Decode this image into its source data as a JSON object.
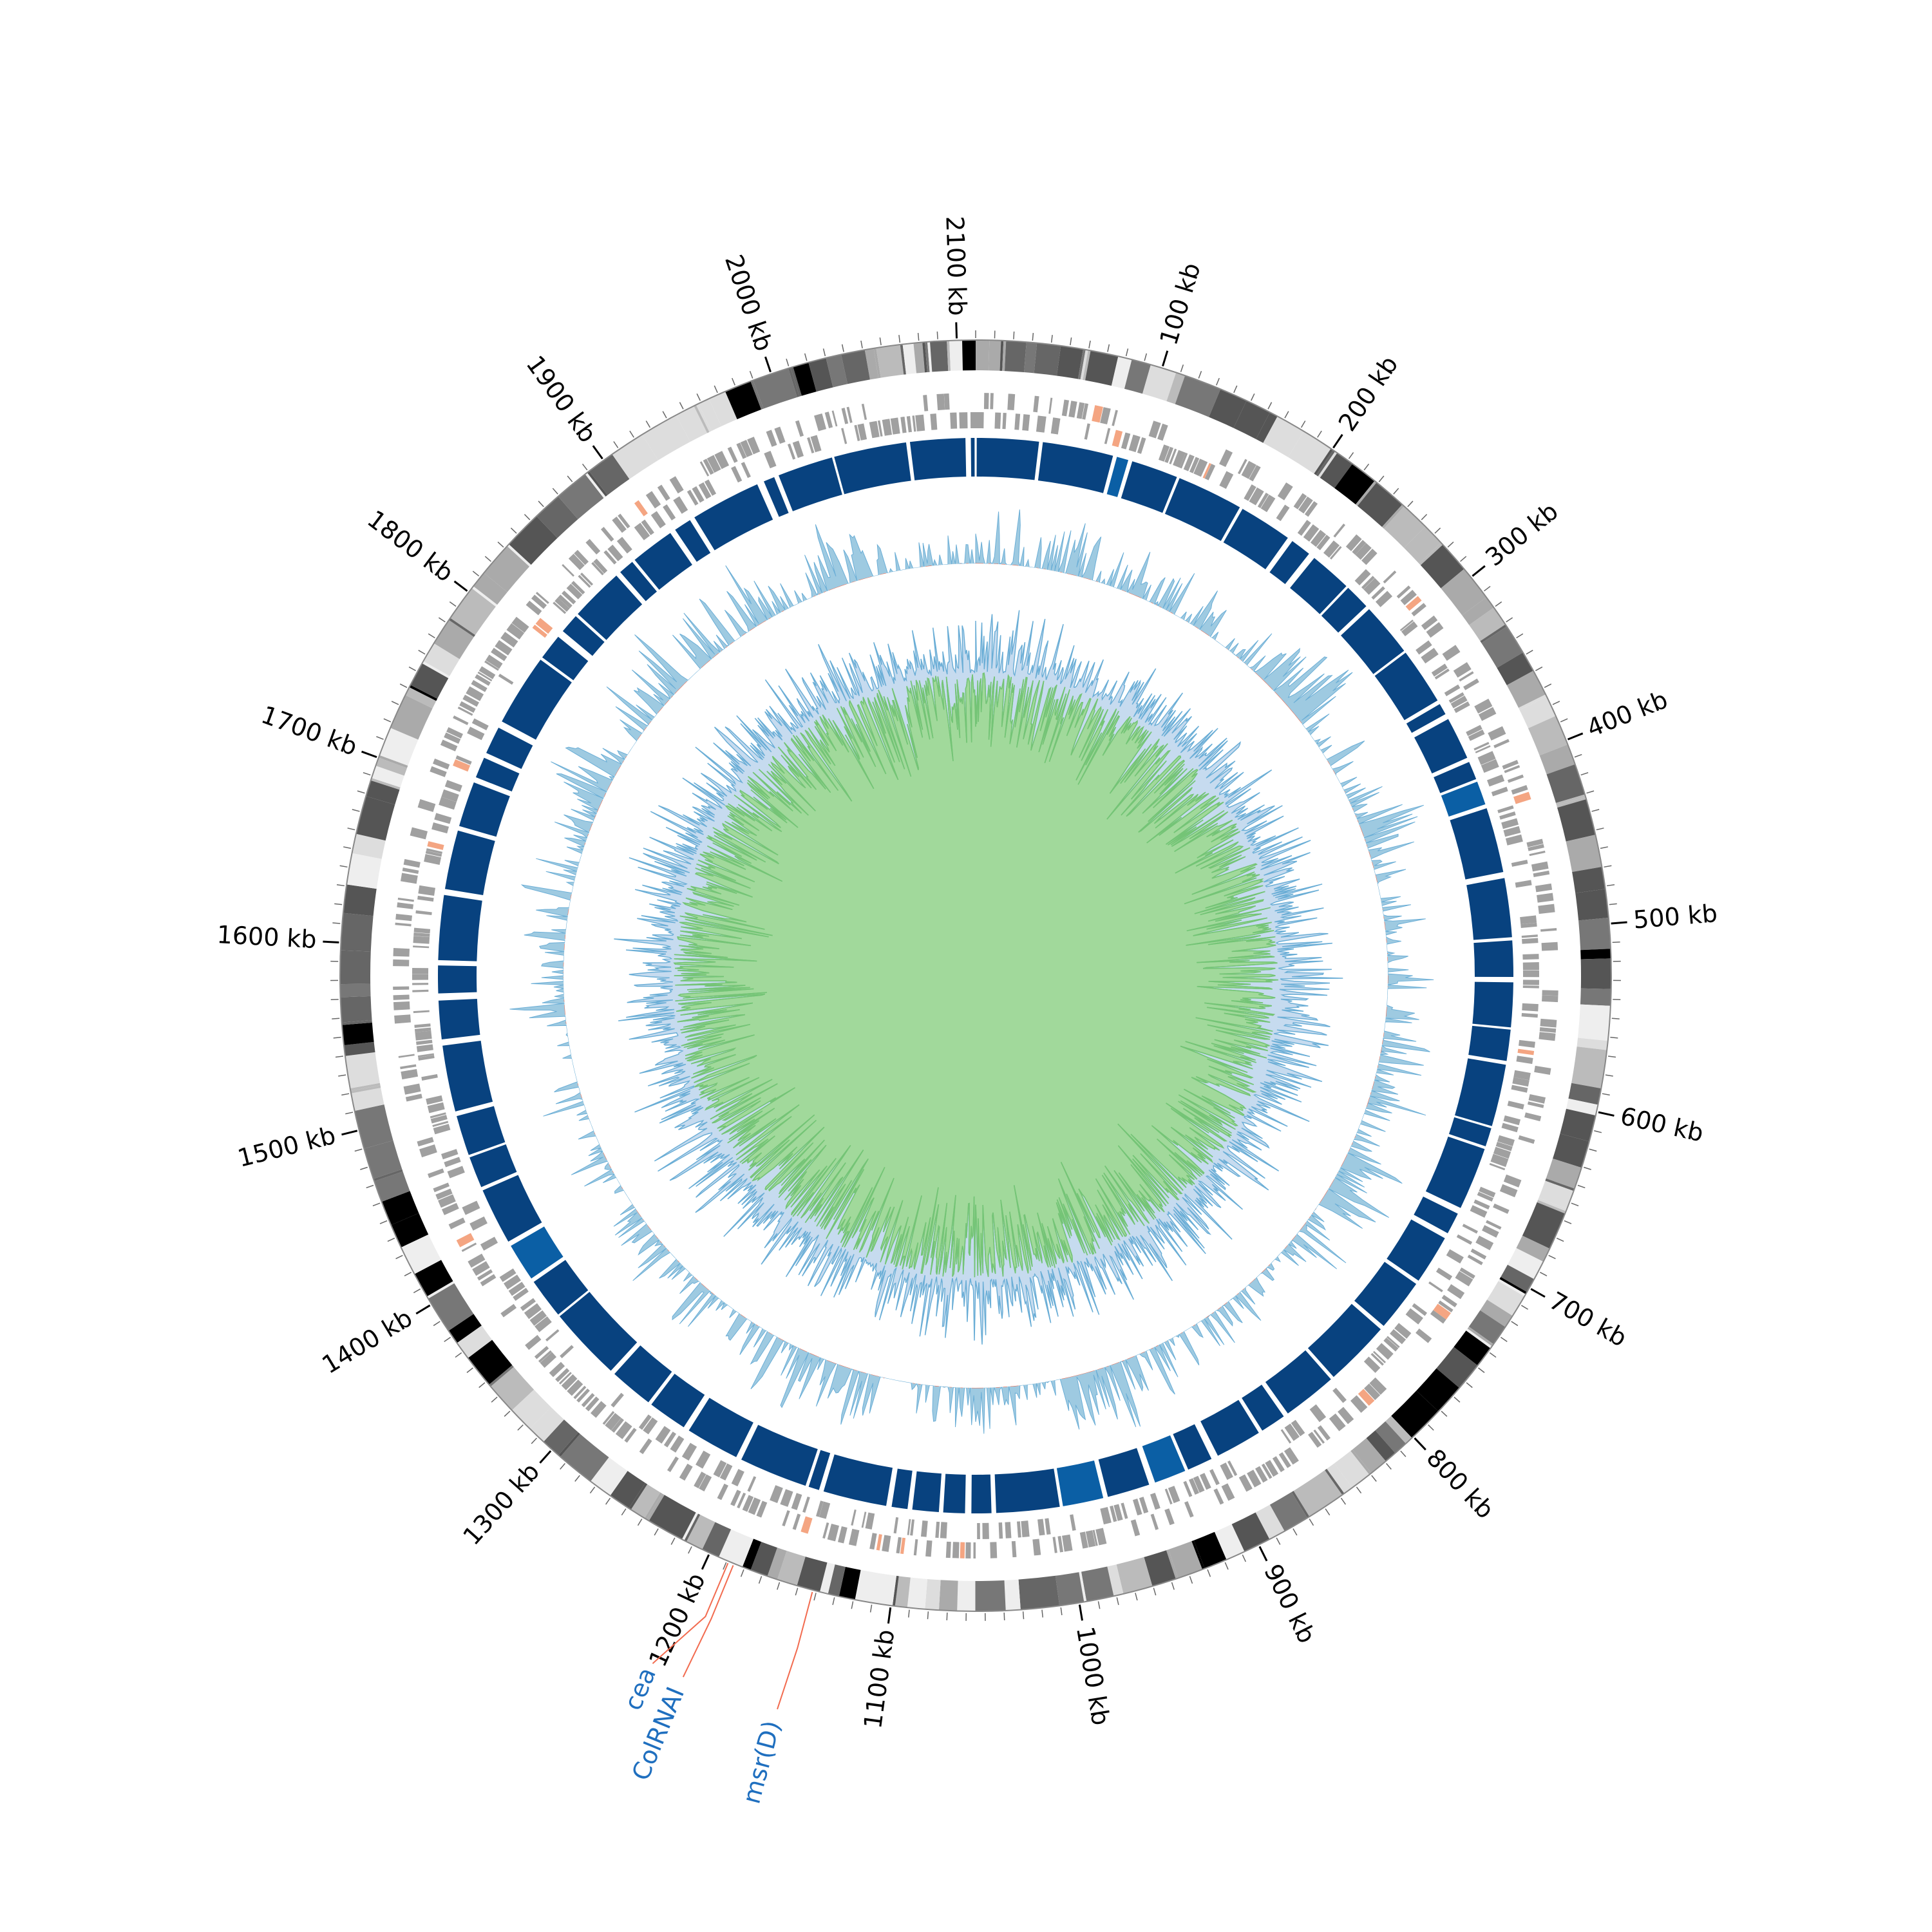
{
  "chart_data": {
    "type": "circos",
    "xlim": [
      0,
      2110
    ],
    "xticks": [
      {
        "value": 100,
        "label": "100 kb"
      },
      {
        "value": 200,
        "label": "200 kb"
      },
      {
        "value": 300,
        "label": "300 kb"
      },
      {
        "value": 400,
        "label": "400 kb"
      },
      {
        "value": 500,
        "label": "500 kb"
      },
      {
        "value": 600,
        "label": "600 kb"
      },
      {
        "value": 700,
        "label": "700 kb"
      },
      {
        "value": 800,
        "label": "800 kb"
      },
      {
        "value": 900,
        "label": "900 kb"
      },
      {
        "value": 1000,
        "label": "1000 kb"
      },
      {
        "value": 1100,
        "label": "1100 kb"
      },
      {
        "value": 1200,
        "label": "1200 kb"
      },
      {
        "value": 1300,
        "label": "1300 kb"
      },
      {
        "value": 1400,
        "label": "1400 kb"
      },
      {
        "value": 1500,
        "label": "1500 kb"
      },
      {
        "value": 1600,
        "label": "1600 kb"
      },
      {
        "value": 1700,
        "label": "1700 kb"
      },
      {
        "value": 1800,
        "label": "1800 kb"
      },
      {
        "value": 1900,
        "label": "1900 kb"
      },
      {
        "value": 2000,
        "label": "2000 kb"
      },
      {
        "value": 2100,
        "label": "2100 kb"
      }
    ],
    "annotations": [
      {
        "label": "cea",
        "x": 1189
      },
      {
        "label": "ColRNAI",
        "x": 1186
      },
      {
        "label": "msr(D)",
        "x": 1142
      }
    ]
  }
}
